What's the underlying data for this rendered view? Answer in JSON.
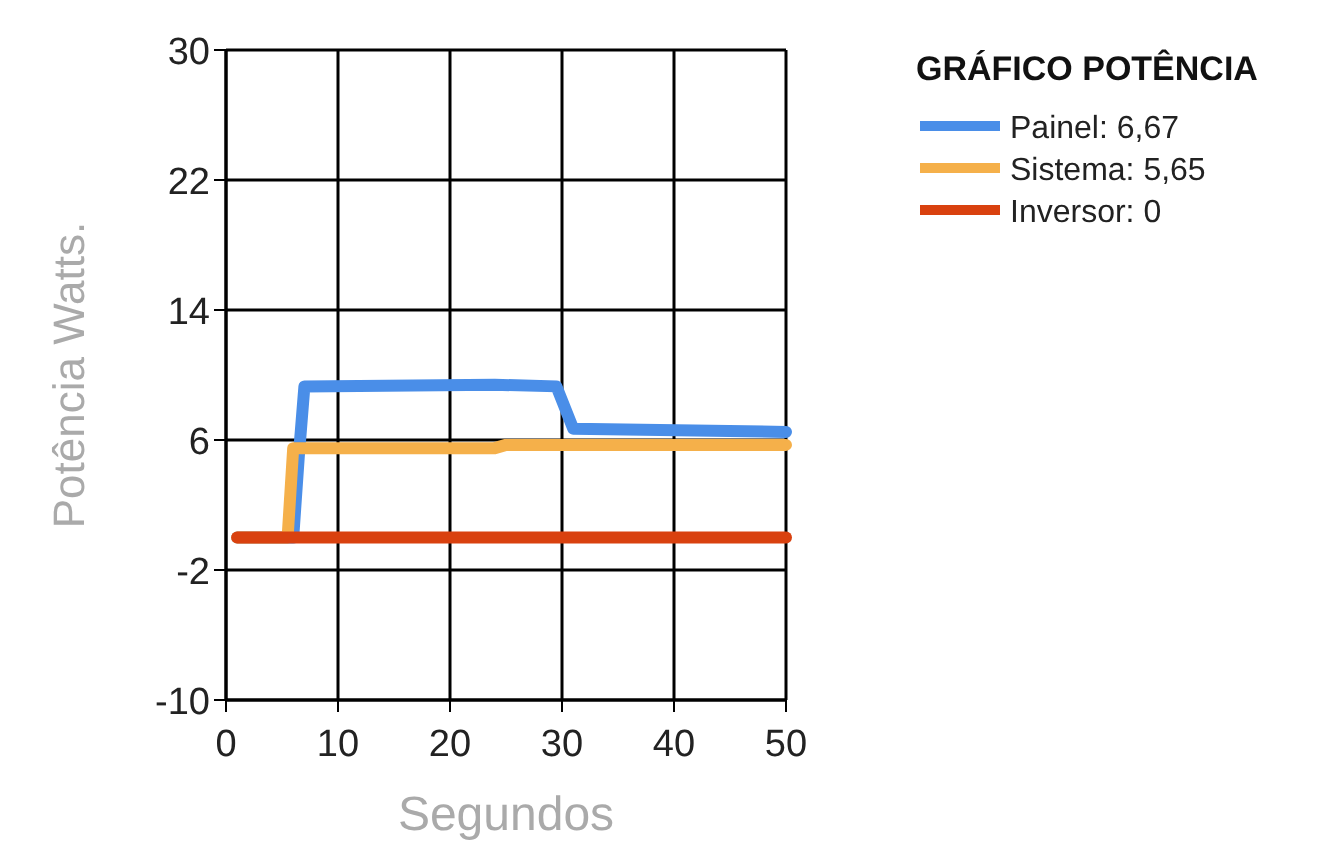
{
  "chart_data": {
    "type": "line",
    "xlabel": "Segundos",
    "ylabel": "Potência Watts.",
    "legend_title": "GRÁFICO POTÊNCIA",
    "xlim": [
      0,
      50
    ],
    "xticks": [
      0,
      10,
      20,
      30,
      40,
      50
    ],
    "ylim": [
      -10,
      30
    ],
    "yticks": [
      -10,
      -2,
      6,
      14,
      22,
      30
    ],
    "grid": true,
    "legend": "top right",
    "marker": "none",
    "line_style": "solid",
    "series": [
      {
        "name": "Painel: 6,67",
        "color": "#4a8ee8",
        "x": [
          1,
          6,
          6.5,
          7,
          24,
          29.5,
          31,
          50
        ],
        "values": [
          0,
          0,
          5,
          9.3,
          9.4,
          9.3,
          6.7,
          6.5
        ]
      },
      {
        "name": "Sistema: 5,65",
        "color": "#f5b04a",
        "x": [
          1,
          5.5,
          6,
          7,
          24,
          25,
          50
        ],
        "values": [
          0,
          0,
          5.5,
          5.5,
          5.5,
          5.7,
          5.7
        ]
      },
      {
        "name": "Inversor: 0",
        "color": "#d9410f",
        "x": [
          1,
          50
        ],
        "values": [
          0,
          0
        ]
      }
    ]
  }
}
